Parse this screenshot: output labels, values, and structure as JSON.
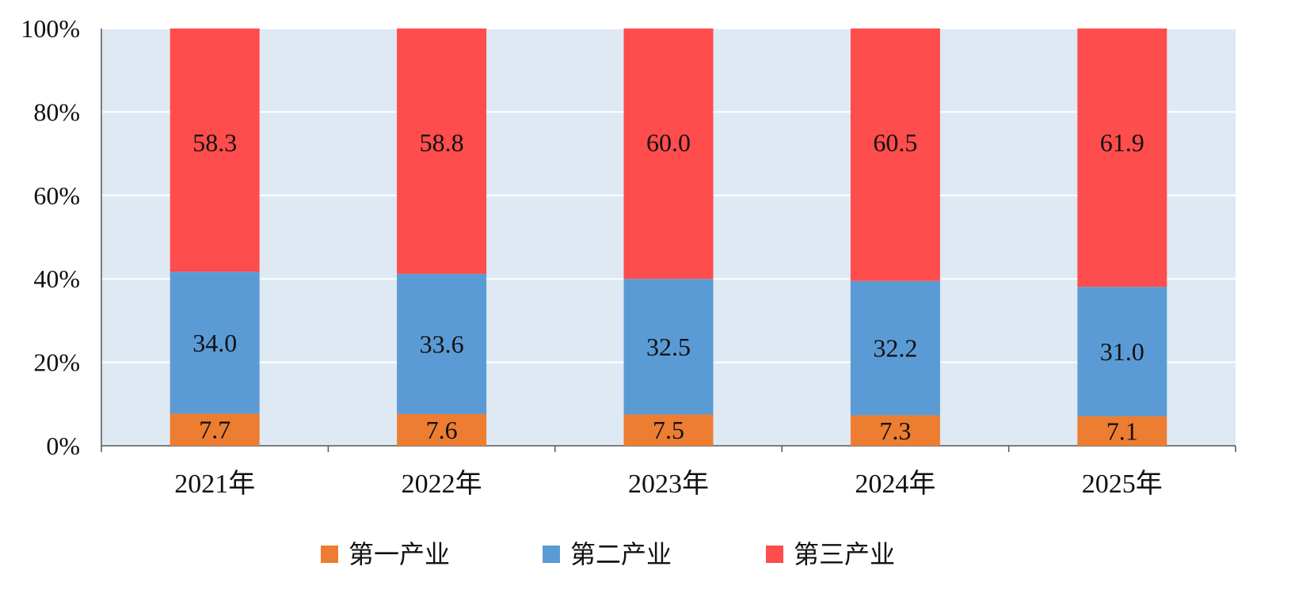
{
  "chart_data": {
    "type": "bar",
    "stacked": true,
    "percent_stacked": true,
    "categories": [
      "2021年",
      "2022年",
      "2023年",
      "2024年",
      "2025年"
    ],
    "series": [
      {
        "name": "第一产业",
        "color": "#ED7D31",
        "values": [
          7.7,
          7.6,
          7.5,
          7.3,
          7.1
        ]
      },
      {
        "name": "第二产业",
        "color": "#5B9BD5",
        "values": [
          34.0,
          33.6,
          32.5,
          32.2,
          31.0
        ]
      },
      {
        "name": "第三产业",
        "color": "#FF4C4C",
        "values": [
          58.3,
          58.8,
          60.0,
          60.5,
          61.9
        ]
      }
    ],
    "y_ticks": [
      "0%",
      "20%",
      "40%",
      "60%",
      "80%",
      "100%"
    ],
    "ylim": [
      0,
      100
    ],
    "grid": true,
    "legend_position": "bottom-center",
    "plot_background": "#DEE9F4",
    "gridline_color": "#FFFFFF"
  }
}
